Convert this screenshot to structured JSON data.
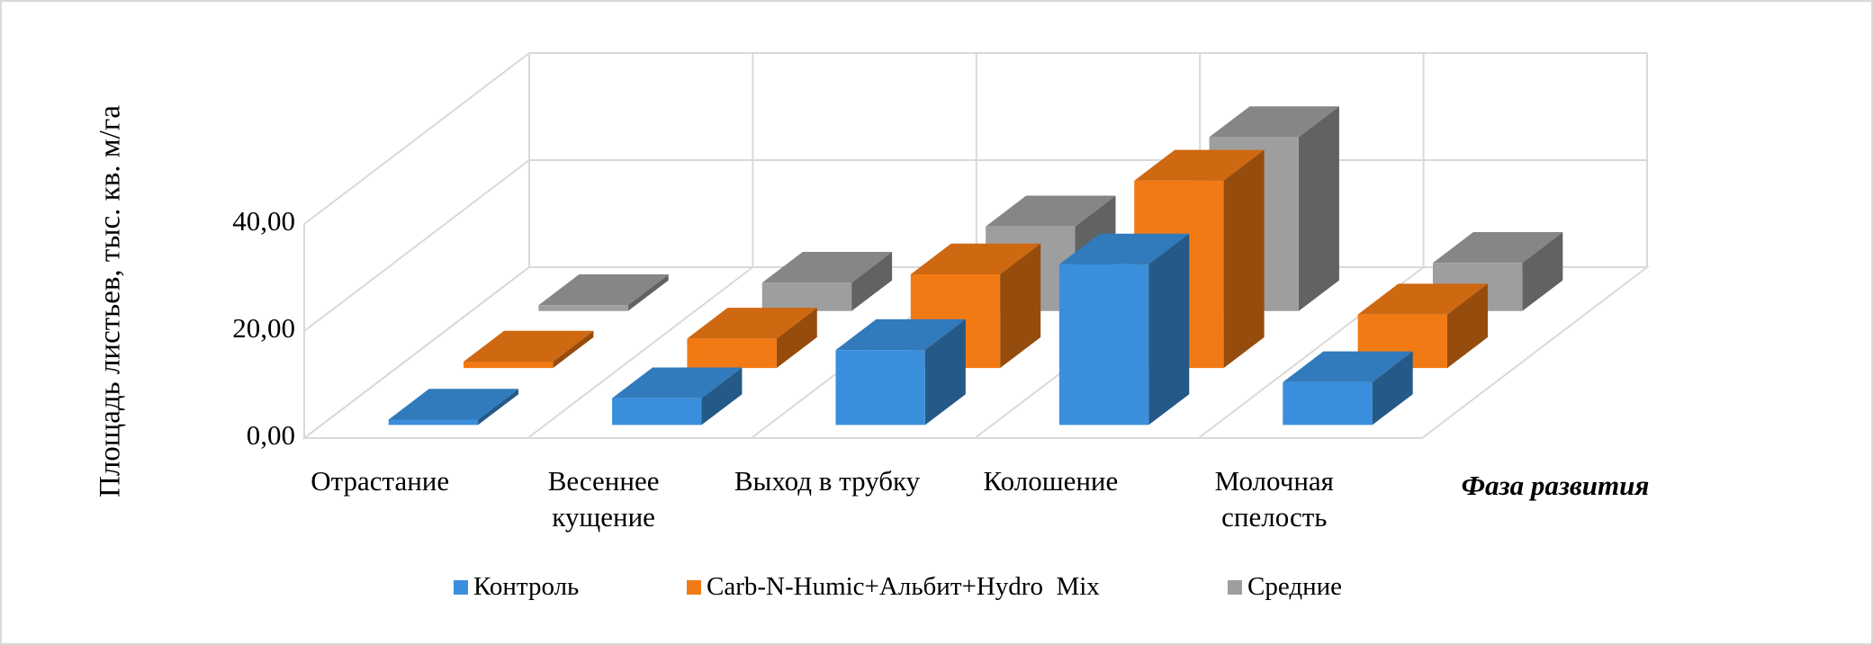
{
  "chart_data": {
    "type": "bar3d",
    "y_label": "Площадь листьев, тыс. кв. м/га",
    "x_label": "Фаза развития",
    "categories": [
      "Отрастание",
      "Весеннее кущение",
      "Выход в трубку",
      "Колошение",
      "Молочная спелость"
    ],
    "series": [
      {
        "name": "Контроль",
        "color": "#3a8fdc",
        "values": [
          1,
          5,
          14,
          30,
          8
        ]
      },
      {
        "name": "Carb-N-Humic+Альбит+Hydro  Mix",
        "color": "#f27a14",
        "values": [
          1.2,
          5.5,
          17.5,
          35,
          10
        ]
      },
      {
        "name": "Средние",
        "color": "#9e9e9e",
        "values": [
          1.1,
          5.3,
          15.8,
          32.5,
          9
        ]
      }
    ],
    "ylim": [
      0,
      40
    ],
    "yticks": [
      {
        "value": 0,
        "label": "0,00"
      },
      {
        "value": 20,
        "label": "20,00"
      },
      {
        "value": 40,
        "label": "40,00"
      }
    ],
    "grid": true
  }
}
